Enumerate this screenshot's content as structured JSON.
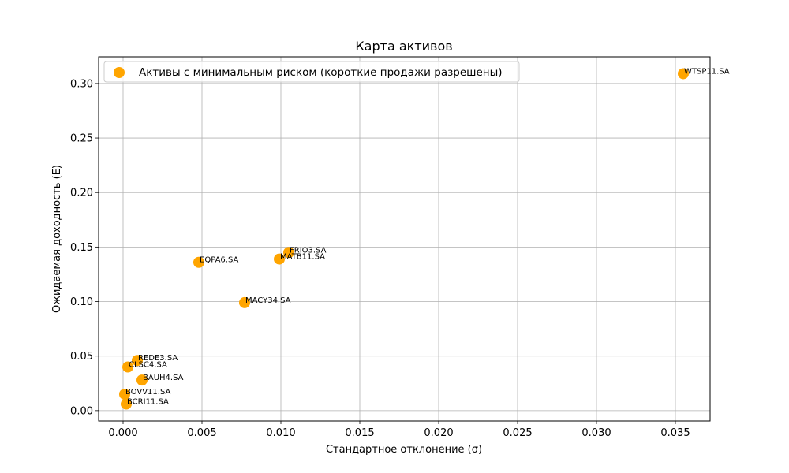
{
  "chart_data": {
    "type": "scatter",
    "title": "Карта активов",
    "xlabel": "Стандартное отклонение (σ)",
    "ylabel": "Ожидаемая доходность (E)",
    "xlim": [
      -0.00155,
      0.0372
    ],
    "ylim": [
      -0.0095,
      0.3245
    ],
    "xticks": [
      0.0,
      0.005,
      0.01,
      0.015,
      0.02,
      0.025,
      0.03,
      0.035
    ],
    "xtick_labels": [
      "0.000",
      "0.005",
      "0.010",
      "0.015",
      "0.020",
      "0.025",
      "0.030",
      "0.035"
    ],
    "yticks": [
      0.0,
      0.05,
      0.1,
      0.15,
      0.2,
      0.25,
      0.3
    ],
    "ytick_labels": [
      "0.00",
      "0.05",
      "0.10",
      "0.15",
      "0.20",
      "0.25",
      "0.30"
    ],
    "grid": true,
    "legend_position": "top-left",
    "series": [
      {
        "name": "Активы с минимальным риском (короткие продажи разрешены)",
        "color": "#FFA500",
        "points": [
          {
            "label": "WTSP11.SA",
            "x": 0.0355,
            "y": 0.309
          },
          {
            "label": "FRIO3.SA",
            "x": 0.0105,
            "y": 0.145
          },
          {
            "label": "MATB11.SA",
            "x": 0.0099,
            "y": 0.139
          },
          {
            "label": "EQPA6.SA",
            "x": 0.0048,
            "y": 0.136
          },
          {
            "label": "MACY34.SA",
            "x": 0.0077,
            "y": 0.099
          },
          {
            "label": "REDE3.SA",
            "x": 0.0009,
            "y": 0.046
          },
          {
            "label": "CLSC4.SA",
            "x": 0.0003,
            "y": 0.04
          },
          {
            "label": "BAUH4.SA",
            "x": 0.0012,
            "y": 0.028
          },
          {
            "label": "BOVV11.SA",
            "x": 0.0001,
            "y": 0.015
          },
          {
            "label": "BCRI11.SA",
            "x": 0.0002,
            "y": 0.006
          }
        ]
      }
    ]
  }
}
